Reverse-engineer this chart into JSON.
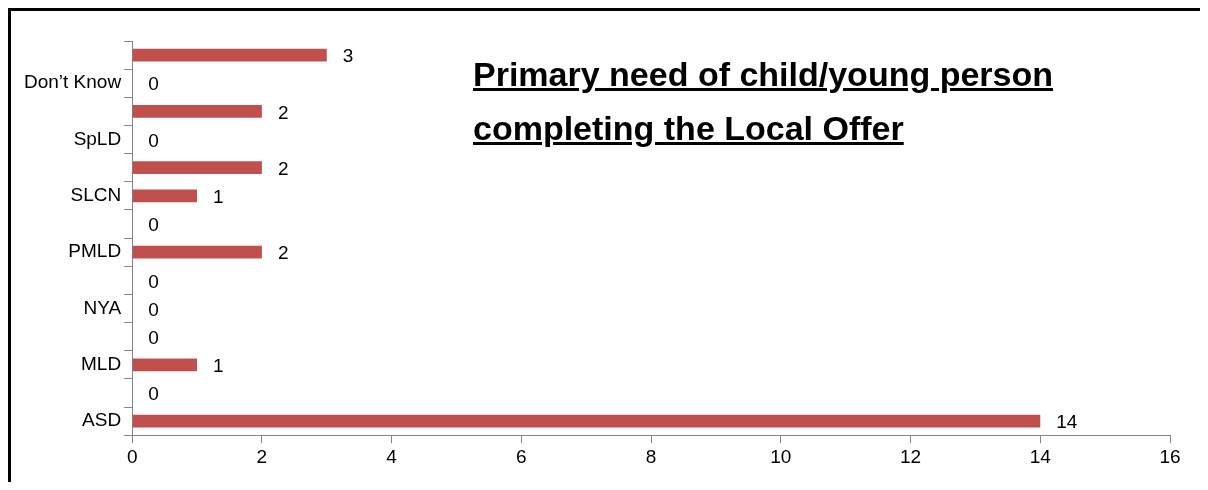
{
  "chart_data": {
    "type": "bar",
    "orientation": "horizontal",
    "title": "Primary need of child/young person completing the Local Offer",
    "categories": [
      null,
      "Don’t Know",
      null,
      "SpLD",
      null,
      "SLCN",
      null,
      "PMLD",
      null,
      "NYA",
      null,
      "MLD",
      null,
      "ASD"
    ],
    "values": [
      3,
      0,
      2,
      0,
      2,
      1,
      0,
      2,
      0,
      0,
      0,
      1,
      0,
      14
    ],
    "color": "#c0504d",
    "xlim": [
      0,
      16
    ],
    "xticks": [
      0,
      2,
      4,
      6,
      8,
      10,
      12,
      14,
      16
    ],
    "grid": false,
    "legend": false,
    "data_labels": true
  }
}
